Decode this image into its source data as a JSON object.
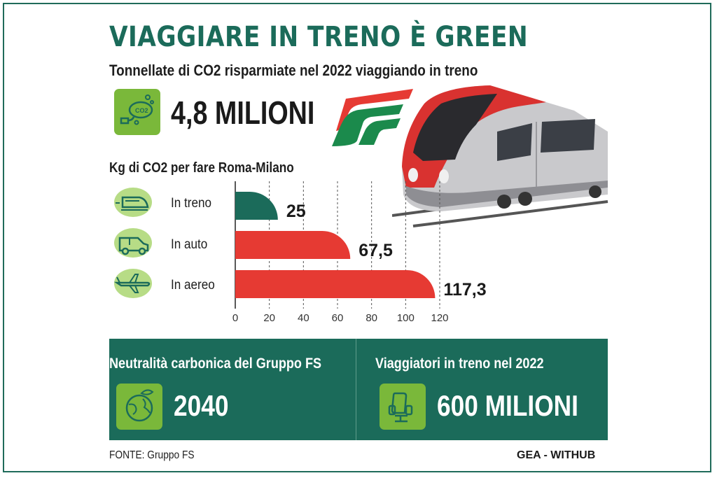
{
  "header": {
    "title": "VIAGGIARE IN TRENO È GREEN",
    "subtitle": "Tonnellate di CO2 risparmiate nel 2022 viaggiando in treno"
  },
  "co2_saved": {
    "value": "4,8 MILIONI",
    "icon": "co2-emission-icon",
    "icon_text": "CO2"
  },
  "chart_data": {
    "type": "bar",
    "orientation": "horizontal",
    "title": "Kg di CO2 per fare Roma-Milano",
    "categories": [
      "In treno",
      "In auto",
      "In aereo"
    ],
    "values": [
      25,
      67.5,
      117.3
    ],
    "value_labels": [
      "25",
      "67,5",
      "117,3"
    ],
    "category_icons": [
      "train-icon",
      "car-icon",
      "airplane-icon"
    ],
    "colors": [
      "#1b6b5a",
      "#e63a33",
      "#e63a33"
    ],
    "xlim": [
      0,
      120
    ],
    "xticks": [
      0,
      20,
      40,
      60,
      80,
      100,
      120
    ],
    "grid": true
  },
  "panels": [
    {
      "label": "Neutralità carbonica del Gruppo FS",
      "value": "2040",
      "icon": "globe-leaf-icon"
    },
    {
      "label": "Viaggiatori in treno nel 2022",
      "value": "600 MILIONI",
      "icon": "train-seat-icon"
    }
  ],
  "footer": {
    "source": "FONTE: Gruppo FS",
    "credit": "GEA - WITHUB"
  },
  "colors": {
    "green_dark": "#1b6b5a",
    "green_light": "#7ab83a",
    "red": "#e63a33"
  }
}
